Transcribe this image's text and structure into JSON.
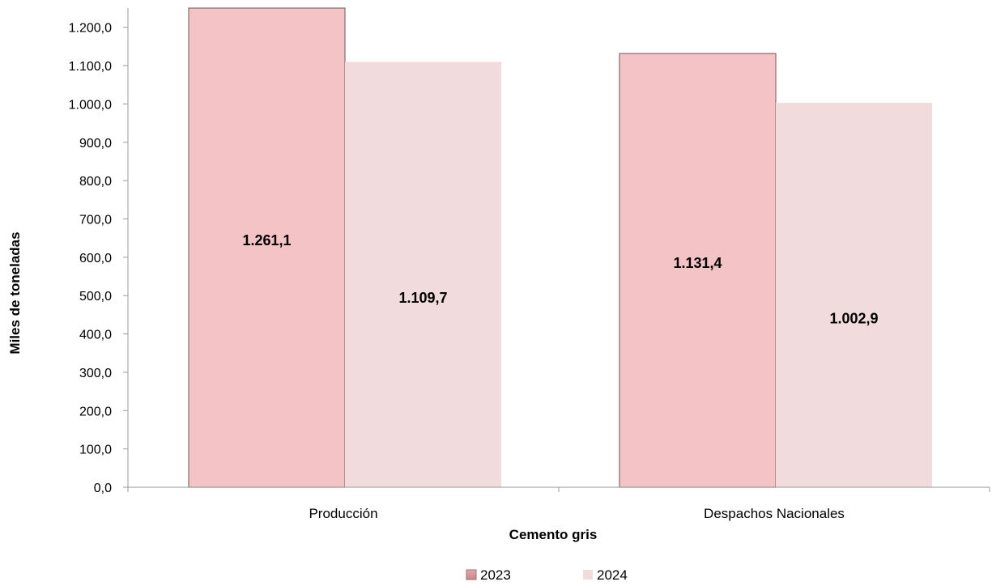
{
  "chart_data": {
    "type": "bar",
    "categories": [
      "Producción",
      "Despachos Nacionales"
    ],
    "series": [
      {
        "name": "2023",
        "values": [
          1261.1,
          1131.4
        ],
        "color": "#f4c3c5",
        "data_labels": [
          "1.261,1",
          "1.131,4"
        ]
      },
      {
        "name": "2024",
        "values": [
          1109.7,
          1002.9
        ],
        "color": "#f2dbdc",
        "data_labels": [
          "1.109,7",
          "1.002,9"
        ]
      }
    ],
    "xlabel": "Cemento gris",
    "ylabel": "Miles de toneladas",
    "ylim": [
      0,
      1250
    ],
    "yticks": [
      0,
      100,
      200,
      300,
      400,
      500,
      600,
      700,
      800,
      900,
      1000,
      1100,
      1200
    ],
    "ytick_labels": [
      "0,0",
      "100,0",
      "200,0",
      "300,0",
      "400,0",
      "500,0",
      "600,0",
      "700,0",
      "800,0",
      "900,0",
      "1.000,0",
      "1.100,0",
      "1.200,0"
    ],
    "grid": false,
    "legend": "bottom-center"
  }
}
